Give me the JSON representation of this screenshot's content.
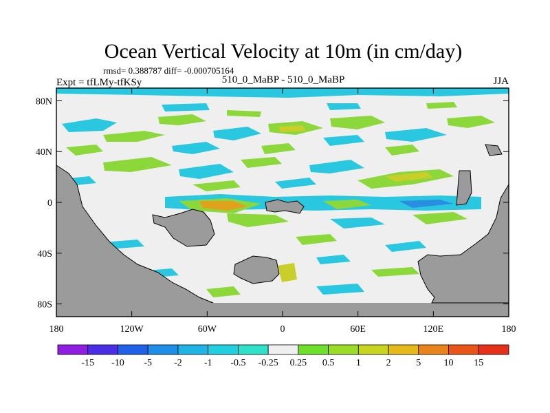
{
  "title": "Ocean Vertical Velocity at 10m (in cm/day)",
  "stats_line": "rmsd= 0.388787 diff= -0.000705164",
  "left_label": "Expt = tfLMy-tfKSy",
  "center_label": "510_0_MaBP - 510_0_MaBP",
  "right_label": "JJA",
  "y_ticks": [
    {
      "label": "80N",
      "lat": 80
    },
    {
      "label": "40N",
      "lat": 40
    },
    {
      "label": "0",
      "lat": 0
    },
    {
      "label": "40S",
      "lat": -40
    },
    {
      "label": "80S",
      "lat": -80
    }
  ],
  "x_ticks": [
    {
      "label": "180",
      "lon": -180
    },
    {
      "label": "120W",
      "lon": -120
    },
    {
      "label": "60W",
      "lon": -60
    },
    {
      "label": "0",
      "lon": 0
    },
    {
      "label": "60E",
      "lon": 60
    },
    {
      "label": "120E",
      "lon": 120
    },
    {
      "label": "180",
      "lon": 180
    }
  ],
  "colorbar": {
    "labels": [
      "-15",
      "-10",
      "-5",
      "-2",
      "-1",
      "-0.5",
      "-0.25",
      "0.25",
      "0.5",
      "1",
      "2",
      "5",
      "10",
      "15"
    ],
    "colors": [
      "#8f1ee0",
      "#4a2ee6",
      "#1f62e8",
      "#1e8ee8",
      "#20b4e6",
      "#20cfe0",
      "#30e0c8",
      "#efefef",
      "#6fe02a",
      "#9bdc28",
      "#c8d41e",
      "#e6b81a",
      "#e8841a",
      "#e85516",
      "#e6301a"
    ]
  },
  "colors": {
    "land": "#9b9b9b",
    "ocean_neutral": "#efefef",
    "cyan": "#2ac8e0",
    "green": "#8cd83a",
    "yellow": "#c9cf28",
    "orange": "#e0a21c",
    "blue": "#2a8ee0"
  }
}
